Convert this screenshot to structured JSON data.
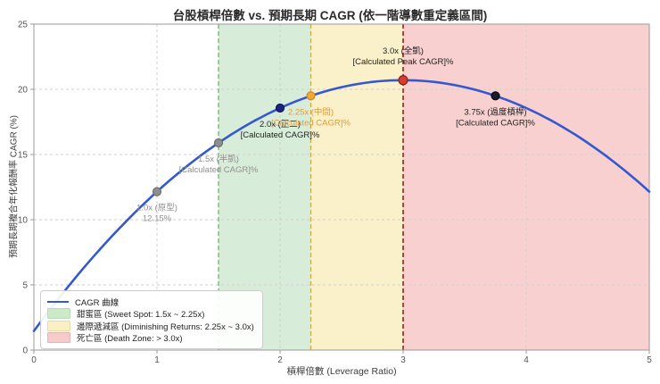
{
  "title": "台股槓桿倍數 vs. 預期長期 CAGR (依一階導數重定義區間)",
  "axes": {
    "x_label": "槓桿倍數 (Leverage Ratio)",
    "y_label": "預期長期複合年化報酬率 CAGR (%)",
    "x_ticks": [
      0,
      1,
      2,
      3,
      4,
      5
    ],
    "y_ticks": [
      0,
      5,
      10,
      15,
      20,
      25
    ]
  },
  "chart_data": {
    "type": "line",
    "title": "台股槓桿倍數 vs. 預期長期 CAGR (依一階導數重定義區間)",
    "xlabel": "槓桿倍數 (Leverage Ratio)",
    "ylabel": "預期長期複合年化報酬率 CAGR (%)",
    "xlim": [
      0,
      5
    ],
    "ylim": [
      0,
      25
    ],
    "grid": true,
    "legend_position": "lower-left",
    "curve": {
      "name": "CAGR 曲線",
      "color": "#3558cf",
      "model": "quadratic",
      "a": 1.4625,
      "b": 12.825,
      "c": -2.1375,
      "x_start": 0,
      "x_end": 5,
      "peak_x": 3.0,
      "peak_y": 20.7
    },
    "points": [
      {
        "x": 1.0,
        "cagr": 12.15,
        "label1": "1.0x (原型)",
        "label2": "12.15%",
        "dot_color": "#8f8f8f",
        "dot_edge": "#6e6e6e",
        "text_color": "#8f8f8f",
        "label_side": "below",
        "dot_r": 4.5
      },
      {
        "x": 1.5,
        "cagr": 15.89,
        "label1": "1.5x (半凱)",
        "label2": "[Calculated CAGR]%",
        "dot_color": "#8f8f8f",
        "dot_edge": "#6e6e6e",
        "text_color": "#8f8f8f",
        "label_side": "below",
        "dot_r": 4.5
      },
      {
        "x": 2.0,
        "cagr": 18.56,
        "label1": "2.0x (正二)",
        "label2": "[Calculated CAGR]%",
        "dot_color": "#1a2380",
        "dot_edge": "#11175c",
        "text_color": "#1f1f1f",
        "label_side": "below",
        "dot_r": 4.5
      },
      {
        "x": 2.25,
        "cagr": 19.5,
        "label1": "2.25x (中間)",
        "label2": "[Calculated CAGR]%",
        "dot_color": "#f2a73d",
        "dot_edge": "#c98820",
        "text_color": "#e09c3a",
        "label_side": "below",
        "dot_r": 4.5
      },
      {
        "x": 3.0,
        "cagr": 20.7,
        "label1": "3.0x (全凱)",
        "label2": "[Calculated Peak CAGR]%",
        "dot_color": "#d63c30",
        "dot_edge": "#8c1d15",
        "text_color": "#1f1f1f",
        "label_side": "above",
        "dot_r": 5
      },
      {
        "x": 3.75,
        "cagr": 19.5,
        "label1": "3.75x (過度槓桿)",
        "label2": "[Calculated CAGR]%",
        "dot_color": "#1b1b30",
        "dot_edge": "#000000",
        "text_color": "#1f1f1f",
        "label_side": "below",
        "dot_r": 4.5
      }
    ],
    "regions": [
      {
        "name": "sweet-spot",
        "label": "甜蜜區 (Sweet Spot: 1.5x ~ 2.25x)",
        "x_start": 1.5,
        "x_end": 2.25,
        "fill": "rgba(76,175,80,0.22)",
        "border_color": "#5cb85c",
        "border_width": 1.2
      },
      {
        "name": "diminishing-returns",
        "label": "邊際遞減區 (Diminishing Returns: 2.25x ~ 3.0x)",
        "x_start": 2.25,
        "x_end": 3.0,
        "fill": "rgba(235,195,45,0.25)",
        "border_color": "#d7a62b",
        "border_width": 1.2
      },
      {
        "name": "death-zone",
        "label": "死亡區 (Death Zone: > 3.0x)",
        "x_start": 3.0,
        "x_end": 5.0,
        "fill": "rgba(225,60,60,0.24)",
        "border_color": "#b03226",
        "border_width": 1.8
      }
    ],
    "style": {
      "background": "#ffffff",
      "grid_color": "#cfcfcf",
      "spine_color": "#9a9a9a",
      "tick_color": "#555555",
      "annotation_font_px": 9.5
    }
  },
  "legend": {
    "items": [
      {
        "type": "line",
        "color": "#3558cf",
        "border": "#3558cf",
        "label": "CAGR 曲線"
      },
      {
        "type": "patch",
        "color": "#cdeac8",
        "border": "#b9dcb4",
        "label": "甜蜜區 (Sweet Spot: 1.5x ~ 2.25x)"
      },
      {
        "type": "patch",
        "color": "#faf0c4",
        "border": "#e8dba6",
        "label": "邊際遞減區 (Diminishing Returns: 2.25x ~ 3.0x)"
      },
      {
        "type": "patch",
        "color": "#f6cbcb",
        "border": "#e5b3b3",
        "label": "死亡區 (Death Zone: > 3.0x)"
      }
    ]
  }
}
